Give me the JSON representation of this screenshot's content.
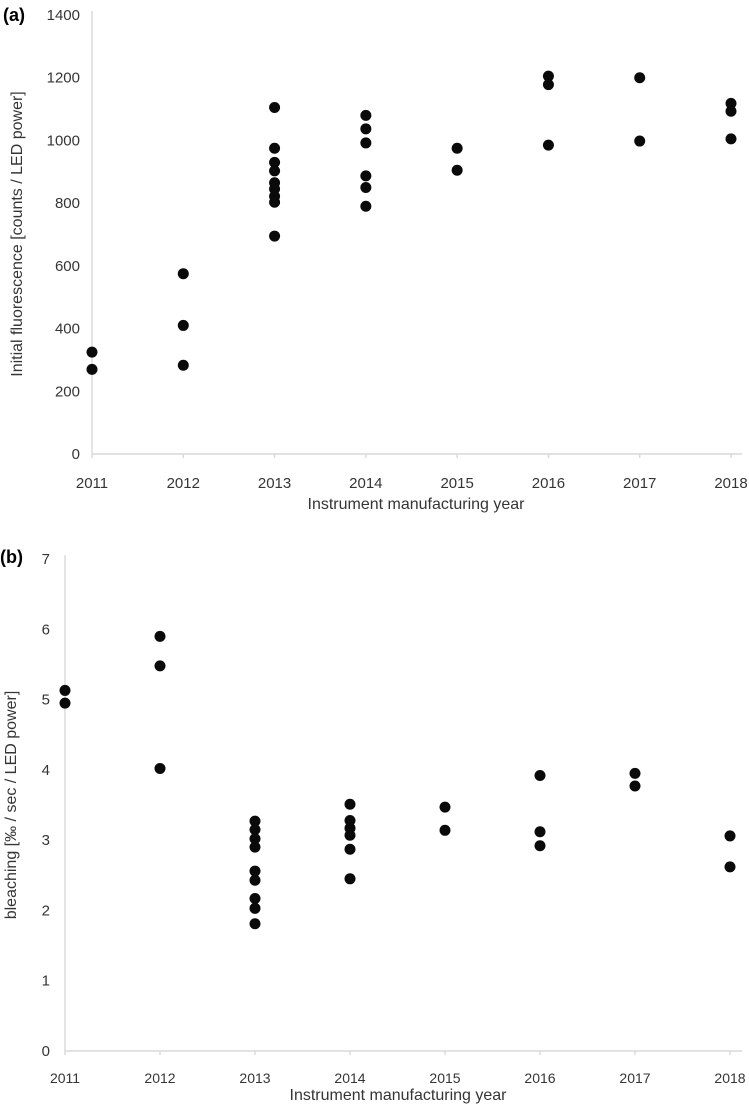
{
  "figure": {
    "x_axis_title": "Instrument manufacturing year",
    "years": [
      "2011",
      "2012",
      "2013",
      "2014",
      "2015",
      "2016",
      "2017",
      "2018"
    ]
  },
  "chart_data": [
    {
      "type": "scatter",
      "panel_label": "(a)",
      "title": "",
      "xlabel": "Instrument manufacturing year",
      "ylabel": "Initial fluorescence [counts / LED power]",
      "ylim": [
        0,
        1400
      ],
      "ytick_step": 200,
      "ytick_labels": [
        "0",
        "200",
        "400",
        "600",
        "800",
        "1000",
        "1200",
        "1400"
      ],
      "grid": false,
      "legend": "none",
      "marker_color": "#0a0a0a",
      "x_categories": [
        "2011",
        "2012",
        "2013",
        "2014",
        "2015",
        "2016",
        "2017",
        "2018"
      ],
      "points": {
        "2011": [
          325,
          270
        ],
        "2012": [
          575,
          410,
          283
        ],
        "2013": [
          1105,
          975,
          930,
          903,
          865,
          845,
          822,
          803,
          695
        ],
        "2014": [
          1080,
          1037,
          992,
          887,
          850,
          790
        ],
        "2015": [
          975,
          905
        ],
        "2016": [
          1205,
          1178,
          985
        ],
        "2017": [
          1200,
          998
        ],
        "2018": [
          1118,
          1093,
          1005
        ]
      }
    },
    {
      "type": "scatter",
      "panel_label": "(b)",
      "title": "",
      "xlabel": "Instrument manufacturing year",
      "ylabel": "bleaching [‰ / sec / LED power]",
      "ylim": [
        0,
        7
      ],
      "ytick_step": 1,
      "ytick_labels": [
        "0",
        "1",
        "2",
        "3",
        "4",
        "5",
        "6",
        "7"
      ],
      "grid": false,
      "legend": "none",
      "marker_color": "#0a0a0a",
      "x_categories": [
        "2011",
        "2012",
        "2013",
        "2014",
        "2015",
        "2016",
        "2017",
        "2018"
      ],
      "points": {
        "2011": [
          5.13,
          4.95
        ],
        "2012": [
          5.9,
          5.48,
          4.02
        ],
        "2013": [
          3.27,
          3.15,
          3.02,
          2.9,
          2.56,
          2.43,
          2.17,
          2.03,
          1.81
        ],
        "2014": [
          3.51,
          3.28,
          3.17,
          3.07,
          2.87,
          2.45
        ],
        "2015": [
          3.47,
          3.14
        ],
        "2016": [
          3.92,
          3.12,
          2.92
        ],
        "2017": [
          3.95,
          3.77
        ],
        "2018": [
          3.06,
          2.62
        ]
      }
    }
  ]
}
